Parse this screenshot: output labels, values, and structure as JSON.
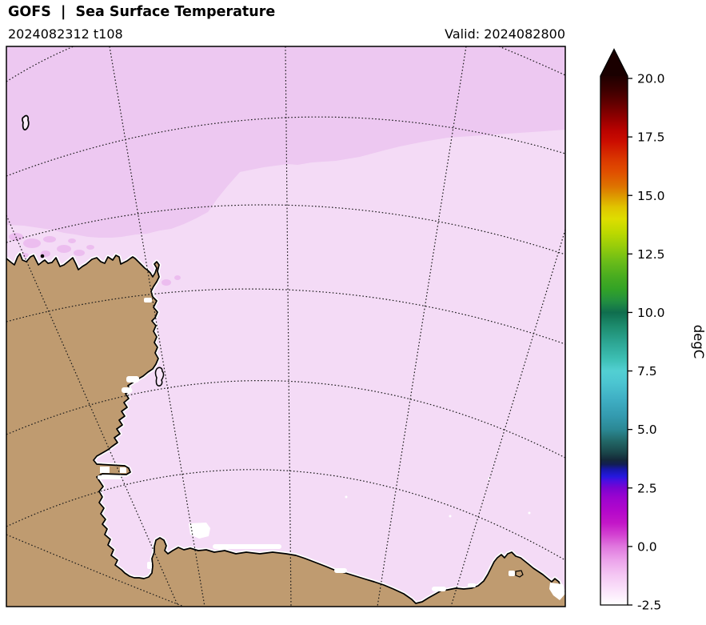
{
  "figure": {
    "title": "GOFS  |  Sea Surface Temperature",
    "run_label": "2024082312 t108",
    "valid_label": "Valid: 2024082800"
  },
  "colorbar": {
    "unit_label": "degC",
    "min": -2.5,
    "max": 20.0,
    "extend": "max",
    "arrow_color": "#1a0000",
    "ticks": [
      {
        "value": 20.0,
        "label": "20.0"
      },
      {
        "value": 17.5,
        "label": "17.5"
      },
      {
        "value": 15.0,
        "label": "15.0"
      },
      {
        "value": 12.5,
        "label": "12.5"
      },
      {
        "value": 10.0,
        "label": "10.0"
      },
      {
        "value": 7.5,
        "label": "7.5"
      },
      {
        "value": 5.0,
        "label": "5.0"
      },
      {
        "value": 2.5,
        "label": "2.5"
      },
      {
        "value": 0.0,
        "label": "0.0"
      },
      {
        "value": -2.5,
        "label": "-2.5"
      }
    ],
    "stops": [
      {
        "v": 20.1,
        "c": "#1f0000"
      },
      {
        "v": 19.5,
        "c": "#3d0000"
      },
      {
        "v": 19.0,
        "c": "#5e0000"
      },
      {
        "v": 18.3,
        "c": "#930000"
      },
      {
        "v": 17.8,
        "c": "#b80200"
      },
      {
        "v": 17.3,
        "c": "#cb0d00"
      },
      {
        "v": 16.6,
        "c": "#d93400"
      },
      {
        "v": 16.0,
        "c": "#e04f00"
      },
      {
        "v": 15.4,
        "c": "#de7200"
      },
      {
        "v": 15.0,
        "c": "#dd9600"
      },
      {
        "v": 14.5,
        "c": "#e0c400"
      },
      {
        "v": 14.0,
        "c": "#dedd00"
      },
      {
        "v": 13.4,
        "c": "#bcd900"
      },
      {
        "v": 12.8,
        "c": "#95cc0b"
      },
      {
        "v": 12.2,
        "c": "#6cbd18"
      },
      {
        "v": 11.5,
        "c": "#47ab20"
      },
      {
        "v": 11.0,
        "c": "#33a326"
      },
      {
        "v": 10.5,
        "c": "#23903f"
      },
      {
        "v": 10.0,
        "c": "#0f6e4e"
      },
      {
        "v": 9.4,
        "c": "#1d8c6e"
      },
      {
        "v": 8.7,
        "c": "#2da694"
      },
      {
        "v": 8.0,
        "c": "#3dbfb4"
      },
      {
        "v": 7.5,
        "c": "#52cfd2"
      },
      {
        "v": 7.0,
        "c": "#4cc5d1"
      },
      {
        "v": 6.3,
        "c": "#3fafc4"
      },
      {
        "v": 5.6,
        "c": "#349bb0"
      },
      {
        "v": 5.0,
        "c": "#2b8894"
      },
      {
        "v": 4.5,
        "c": "#226767"
      },
      {
        "v": 4.0,
        "c": "#1a4549"
      },
      {
        "v": 3.7,
        "c": "#14283a"
      },
      {
        "v": 3.5,
        "c": "#121d56"
      },
      {
        "v": 3.3,
        "c": "#1717a8"
      },
      {
        "v": 3.0,
        "c": "#2418dd"
      },
      {
        "v": 2.8,
        "c": "#4c0ee0"
      },
      {
        "v": 2.5,
        "c": "#7a04d1"
      },
      {
        "v": 2.1,
        "c": "#9b04cf"
      },
      {
        "v": 1.5,
        "c": "#b408cb"
      },
      {
        "v": 1.0,
        "c": "#c317c8"
      },
      {
        "v": 0.5,
        "c": "#d342d1"
      },
      {
        "v": 0.0,
        "c": "#e077de"
      },
      {
        "v": -0.6,
        "c": "#eca4eb"
      },
      {
        "v": -1.2,
        "c": "#f4c6f3"
      },
      {
        "v": -1.8,
        "c": "#fae0fa"
      },
      {
        "v": -2.5,
        "c": "#ffffff"
      }
    ]
  },
  "map": {
    "sea_color": "#f4dbf6",
    "band_color": "#edc8f1",
    "mottle_color": "#ecbdef",
    "land_color": "#bf9b70",
    "coast_color": "#000000",
    "ice_color": "#ffffff",
    "grid_color": "#1a1a1a"
  },
  "chart_data": {
    "type": "heatmap",
    "title": "GOFS | Sea Surface Temperature",
    "model_run": "2024082312",
    "forecast_hour": "t108",
    "valid_time": "2024082800",
    "units": "degC",
    "colorbar_range": [
      -2.5,
      20.0
    ],
    "colorbar_ticks": [
      20.0,
      17.5,
      15.0,
      12.5,
      10.0,
      7.5,
      5.0,
      2.5,
      0.0,
      -2.5
    ],
    "colorbar_extend": "max",
    "sea_surface_temperature_summary": {
      "visible_value_range_degC": [
        -2.5,
        0.0
      ],
      "open_ocean_band_north_degC": -0.5,
      "coastal_water_degC": -1.5,
      "ice_edge_patches_degC": -2.5
    },
    "description": "Polar stereographic sector of the Antarctic coast. Sea surface temperature is near freezing everywhere: pale pink (about -1.5 degC) over most of the domain, a slightly warmer violet band (about -0.5 degC) along the northern edge, and white patches (about -2.5 degC) hugging the coastline. Land is tan with a black coastline; dotted graticule lines (meridians and latitude circles) overlay the map."
  }
}
